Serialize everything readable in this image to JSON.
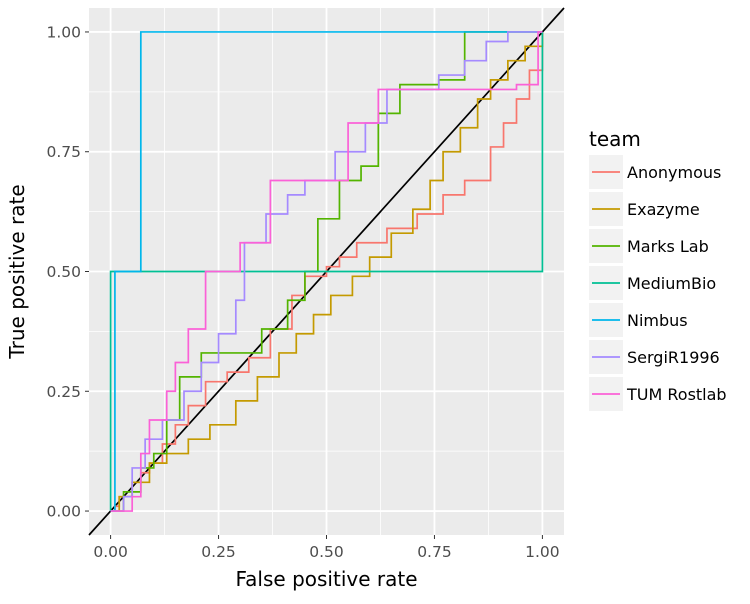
{
  "chart_data": {
    "type": "line",
    "title": "",
    "xlabel": "False positive rate",
    "ylabel": "True positive rate",
    "xlim": [
      -0.05,
      1.05
    ],
    "ylim": [
      -0.05,
      1.05
    ],
    "xticks": [
      "0.00",
      "0.25",
      "0.50",
      "0.75",
      "1.00"
    ],
    "yticks": [
      "0.00",
      "0.25",
      "0.50",
      "0.75",
      "1.00"
    ],
    "grid": true,
    "panel_background": "#EBEBEB",
    "legend": {
      "title": "team",
      "position": "right"
    },
    "diagonal_reference": true,
    "series": [
      {
        "name": "Anonymous",
        "color": "#F8766D",
        "points": [
          [
            0,
            0
          ],
          [
            0.01,
            0.01
          ],
          [
            0.02,
            0.03
          ],
          [
            0.05,
            0.06
          ],
          [
            0.07,
            0.08
          ],
          [
            0.09,
            0.1
          ],
          [
            0.12,
            0.14
          ],
          [
            0.15,
            0.18
          ],
          [
            0.18,
            0.22
          ],
          [
            0.22,
            0.27
          ],
          [
            0.27,
            0.29
          ],
          [
            0.32,
            0.32
          ],
          [
            0.37,
            0.38
          ],
          [
            0.42,
            0.45
          ],
          [
            0.45,
            0.49
          ],
          [
            0.5,
            0.51
          ],
          [
            0.53,
            0.53
          ],
          [
            0.57,
            0.56
          ],
          [
            0.64,
            0.59
          ],
          [
            0.71,
            0.62
          ],
          [
            0.77,
            0.66
          ],
          [
            0.82,
            0.69
          ],
          [
            0.88,
            0.76
          ],
          [
            0.91,
            0.81
          ],
          [
            0.94,
            0.86
          ],
          [
            0.97,
            0.92
          ],
          [
            1,
            1
          ]
        ]
      },
      {
        "name": "Exazyme",
        "color": "#C49A00",
        "points": [
          [
            0,
            0
          ],
          [
            0.02,
            0.03
          ],
          [
            0.05,
            0.06
          ],
          [
            0.09,
            0.1
          ],
          [
            0.13,
            0.12
          ],
          [
            0.18,
            0.15
          ],
          [
            0.23,
            0.18
          ],
          [
            0.29,
            0.23
          ],
          [
            0.34,
            0.28
          ],
          [
            0.39,
            0.33
          ],
          [
            0.43,
            0.37
          ],
          [
            0.47,
            0.41
          ],
          [
            0.51,
            0.45
          ],
          [
            0.56,
            0.49
          ],
          [
            0.6,
            0.53
          ],
          [
            0.65,
            0.58
          ],
          [
            0.7,
            0.63
          ],
          [
            0.74,
            0.69
          ],
          [
            0.77,
            0.75
          ],
          [
            0.81,
            0.8
          ],
          [
            0.85,
            0.86
          ],
          [
            0.88,
            0.9
          ],
          [
            0.92,
            0.94
          ],
          [
            0.96,
            0.97
          ],
          [
            1,
            1
          ]
        ]
      },
      {
        "name": "Marks Lab",
        "color": "#53B400",
        "points": [
          [
            0,
            0
          ],
          [
            0.03,
            0.04
          ],
          [
            0.07,
            0.09
          ],
          [
            0.1,
            0.12
          ],
          [
            0.13,
            0.19
          ],
          [
            0.16,
            0.28
          ],
          [
            0.21,
            0.33
          ],
          [
            0.29,
            0.33
          ],
          [
            0.35,
            0.38
          ],
          [
            0.41,
            0.44
          ],
          [
            0.45,
            0.5
          ],
          [
            0.48,
            0.61
          ],
          [
            0.53,
            0.69
          ],
          [
            0.58,
            0.72
          ],
          [
            0.62,
            0.83
          ],
          [
            0.67,
            0.89
          ],
          [
            0.76,
            0.9
          ],
          [
            0.82,
            1
          ],
          [
            1,
            1
          ]
        ]
      },
      {
        "name": "MediumBio",
        "color": "#00C094",
        "points": [
          [
            0,
            0
          ],
          [
            0,
            0.5
          ],
          [
            1,
            0.5
          ],
          [
            1,
            1
          ]
        ]
      },
      {
        "name": "Nimbus",
        "color": "#00B6EB",
        "points": [
          [
            0,
            0
          ],
          [
            0.01,
            0
          ],
          [
            0.01,
            0.5
          ],
          [
            0.07,
            0.5
          ],
          [
            0.07,
            1
          ],
          [
            1,
            1
          ]
        ]
      },
      {
        "name": "SergiR1996",
        "color": "#A58AFF",
        "points": [
          [
            0,
            0
          ],
          [
            0.03,
            0.03
          ],
          [
            0.05,
            0.09
          ],
          [
            0.08,
            0.15
          ],
          [
            0.12,
            0.19
          ],
          [
            0.17,
            0.25
          ],
          [
            0.21,
            0.31
          ],
          [
            0.25,
            0.37
          ],
          [
            0.29,
            0.44
          ],
          [
            0.31,
            0.56
          ],
          [
            0.36,
            0.62
          ],
          [
            0.41,
            0.66
          ],
          [
            0.45,
            0.69
          ],
          [
            0.52,
            0.75
          ],
          [
            0.59,
            0.81
          ],
          [
            0.64,
            0.88
          ],
          [
            0.71,
            0.88
          ],
          [
            0.76,
            0.91
          ],
          [
            0.82,
            0.94
          ],
          [
            0.87,
            0.98
          ],
          [
            0.92,
            1
          ],
          [
            1,
            1
          ]
        ]
      },
      {
        "name": "TUM Rostlab",
        "color": "#FB61D7",
        "points": [
          [
            0,
            0
          ],
          [
            0.05,
            0.03
          ],
          [
            0.07,
            0.12
          ],
          [
            0.09,
            0.19
          ],
          [
            0.13,
            0.25
          ],
          [
            0.15,
            0.31
          ],
          [
            0.18,
            0.38
          ],
          [
            0.22,
            0.5
          ],
          [
            0.3,
            0.56
          ],
          [
            0.37,
            0.69
          ],
          [
            0.5,
            0.69
          ],
          [
            0.55,
            0.81
          ],
          [
            0.62,
            0.88
          ],
          [
            0.75,
            0.88
          ],
          [
            0.85,
            0.88
          ],
          [
            0.94,
            0.89
          ],
          [
            0.99,
            1
          ],
          [
            1,
            1
          ]
        ]
      }
    ]
  }
}
